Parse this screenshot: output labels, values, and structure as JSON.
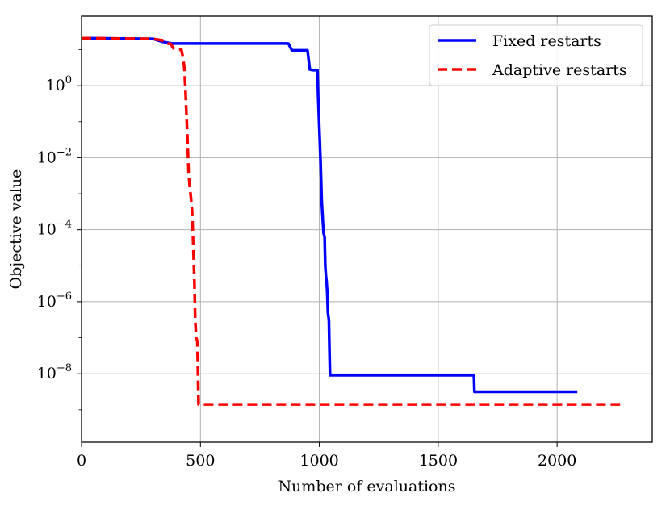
{
  "chart_data": {
    "type": "line",
    "xlabel": "Number of evaluations",
    "ylabel": "Objective value",
    "xlim": [
      0,
      2400
    ],
    "ylog": true,
    "ylim_log10": [
      -9.9,
      1.93
    ],
    "grid": true,
    "legend_position": "top-right",
    "xticks": [
      {
        "value": 0,
        "label": "0"
      },
      {
        "value": 500,
        "label": "500"
      },
      {
        "value": 1000,
        "label": "1000"
      },
      {
        "value": 1500,
        "label": "1500"
      },
      {
        "value": 2000,
        "label": "2000"
      }
    ],
    "yticks": [
      {
        "log10": 0,
        "base": "10",
        "exp": "0"
      },
      {
        "log10": -2,
        "base": "10",
        "exp": "−2"
      },
      {
        "log10": -4,
        "base": "10",
        "exp": "−4"
      },
      {
        "log10": -6,
        "base": "10",
        "exp": "−6"
      },
      {
        "log10": -8,
        "base": "10",
        "exp": "−8"
      }
    ],
    "series": [
      {
        "name": "Fixed restarts",
        "color": "#0000ff",
        "dash": "solid",
        "points_log10": [
          [
            0,
            1.32
          ],
          [
            300,
            1.3
          ],
          [
            340,
            1.22
          ],
          [
            380,
            1.17
          ],
          [
            870,
            1.17
          ],
          [
            885,
            0.98
          ],
          [
            950,
            0.98
          ],
          [
            960,
            0.45
          ],
          [
            975,
            0.43
          ],
          [
            992,
            0.43
          ],
          [
            995,
            -0.3
          ],
          [
            1000,
            -1.2
          ],
          [
            1005,
            -2.1
          ],
          [
            1010,
            -3.2
          ],
          [
            1015,
            -3.8
          ],
          [
            1018,
            -4.1
          ],
          [
            1022,
            -4.2
          ],
          [
            1025,
            -5.0
          ],
          [
            1028,
            -5.3
          ],
          [
            1030,
            -5.4
          ],
          [
            1033,
            -5.7
          ],
          [
            1036,
            -6.3
          ],
          [
            1040,
            -6.5
          ],
          [
            1042,
            -7.2
          ],
          [
            1045,
            -8.04
          ],
          [
            1650,
            -8.04
          ],
          [
            1652,
            -8.5
          ],
          [
            2085,
            -8.5
          ]
        ]
      },
      {
        "name": "Adaptive restarts",
        "color": "#ff0000",
        "dash": "dashed",
        "points_log10": [
          [
            0,
            1.32
          ],
          [
            300,
            1.3
          ],
          [
            340,
            1.26
          ],
          [
            355,
            1.17
          ],
          [
            375,
            1.16
          ],
          [
            385,
            1.05
          ],
          [
            395,
            1.0
          ],
          [
            420,
            1.0
          ],
          [
            428,
            0.72
          ],
          [
            432,
            0.5
          ],
          [
            437,
            -0.1
          ],
          [
            445,
            -1.4
          ],
          [
            450,
            -2.4
          ],
          [
            455,
            -2.8
          ],
          [
            460,
            -3.1
          ],
          [
            465,
            -3.5
          ],
          [
            470,
            -4.5
          ],
          [
            475,
            -5.5
          ],
          [
            478,
            -6.5
          ],
          [
            482,
            -7.0
          ],
          [
            487,
            -7.1
          ],
          [
            492,
            -8.85
          ],
          [
            2265,
            -8.85
          ]
        ]
      }
    ]
  }
}
